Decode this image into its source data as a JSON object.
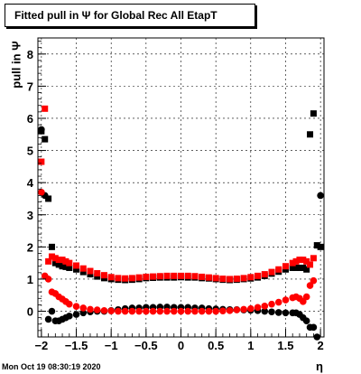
{
  "title_text": "Fitted pull in  Ψ  for Global Rec All EtapT",
  "datestamp": "Mon Oct 19 08:30:19 2020",
  "colors": {
    "black": "#000000",
    "red": "#ff0000"
  },
  "chart_data": {
    "type": "scatter",
    "title": "Fitted pull in  Ψ  for Global Rec All EtapT",
    "xlabel": "η",
    "ylabel": "pull in  Ψ",
    "xlim": [
      -2.05,
      2.05
    ],
    "ylim": [
      -0.8,
      8.5
    ],
    "xticks": [
      -2,
      -1.5,
      -1,
      -0.5,
      0,
      0.5,
      1,
      1.5,
      2
    ],
    "xtick_labels": [
      "−2",
      "−1.5",
      "−1",
      "−0.5",
      "0",
      "0.5",
      "1",
      "1.5",
      "2"
    ],
    "yticks": [
      0,
      1,
      2,
      3,
      4,
      5,
      6,
      7,
      8
    ],
    "ytick_labels": [
      "0",
      "1",
      "2",
      "3",
      "4",
      "5",
      "6",
      "7",
      "8"
    ],
    "grid": true,
    "series": [
      {
        "color": "#000000",
        "marker": "square",
        "x": [
          -2.0,
          -1.95,
          -1.9,
          -1.85,
          -1.8,
          -1.75,
          -1.7,
          -1.65,
          -1.6,
          -1.5,
          -1.4,
          -1.3,
          -1.2,
          -1.1,
          -1.0,
          -0.9,
          -0.8,
          -0.7,
          -0.6,
          -0.5,
          -0.4,
          -0.3,
          -0.2,
          -0.1,
          0.0,
          0.1,
          0.2,
          0.3,
          0.4,
          0.5,
          0.6,
          0.7,
          0.8,
          0.9,
          1.0,
          1.1,
          1.2,
          1.3,
          1.4,
          1.5,
          1.6,
          1.65,
          1.7,
          1.75,
          1.8,
          1.85,
          1.9,
          1.95,
          2.0
        ],
        "y": [
          5.6,
          5.35,
          3.5,
          2.0,
          1.5,
          1.45,
          1.4,
          1.38,
          1.35,
          1.3,
          1.22,
          1.15,
          1.08,
          1.03,
          1.0,
          0.98,
          0.97,
          0.98,
          1.0,
          1.03,
          1.04,
          1.05,
          1.05,
          1.05,
          1.06,
          1.05,
          1.05,
          1.03,
          1.02,
          1.0,
          0.98,
          0.97,
          0.98,
          1.0,
          1.02,
          1.05,
          1.1,
          1.17,
          1.23,
          1.3,
          1.35,
          1.35,
          1.35,
          1.35,
          1.3,
          5.5,
          6.15,
          2.05,
          2.0
        ]
      },
      {
        "color": "#ff0000",
        "marker": "square",
        "x": [
          -2.0,
          -1.95,
          -1.9,
          -1.85,
          -1.8,
          -1.75,
          -1.7,
          -1.65,
          -1.6,
          -1.5,
          -1.4,
          -1.3,
          -1.2,
          -1.1,
          -1.0,
          -0.9,
          -0.8,
          -0.7,
          -0.6,
          -0.5,
          -0.4,
          -0.3,
          -0.2,
          -0.1,
          0.0,
          0.1,
          0.2,
          0.3,
          0.4,
          0.5,
          0.6,
          0.7,
          0.8,
          0.9,
          1.0,
          1.1,
          1.2,
          1.3,
          1.4,
          1.5,
          1.6,
          1.65,
          1.7,
          1.75,
          1.8,
          1.85,
          1.9
        ],
        "y": [
          4.65,
          6.3,
          1.55,
          1.7,
          1.65,
          1.6,
          1.6,
          1.55,
          1.5,
          1.42,
          1.33,
          1.25,
          1.18,
          1.12,
          1.06,
          1.03,
          1.02,
          1.03,
          1.05,
          1.07,
          1.08,
          1.09,
          1.1,
          1.1,
          1.1,
          1.1,
          1.09,
          1.07,
          1.05,
          1.03,
          1.01,
          1.0,
          1.01,
          1.03,
          1.06,
          1.1,
          1.15,
          1.22,
          1.3,
          1.4,
          1.5,
          1.55,
          1.6,
          1.6,
          1.55,
          1.45,
          1.65
        ]
      },
      {
        "color": "#000000",
        "marker": "circle",
        "x": [
          -2.0,
          -1.95,
          -1.9,
          -1.85,
          -1.8,
          -1.75,
          -1.7,
          -1.65,
          -1.6,
          -1.5,
          -1.4,
          -1.3,
          -1.2,
          -1.1,
          -1.0,
          -0.9,
          -0.8,
          -0.7,
          -0.6,
          -0.5,
          -0.4,
          -0.3,
          -0.2,
          -0.1,
          0.0,
          0.1,
          0.2,
          0.3,
          0.4,
          0.5,
          0.6,
          0.7,
          0.8,
          0.9,
          1.0,
          1.1,
          1.2,
          1.3,
          1.4,
          1.5,
          1.6,
          1.65,
          1.7,
          1.75,
          1.8,
          1.85,
          1.9,
          1.95,
          2.0
        ],
        "y": [
          5.65,
          3.6,
          -0.25,
          0.0,
          -0.3,
          -0.3,
          -0.25,
          -0.2,
          -0.15,
          -0.1,
          -0.05,
          -0.02,
          0.0,
          0.0,
          0.02,
          0.05,
          0.08,
          0.1,
          0.1,
          0.12,
          0.12,
          0.13,
          0.13,
          0.12,
          0.12,
          0.12,
          0.1,
          0.1,
          0.08,
          0.07,
          0.06,
          0.05,
          0.05,
          0.04,
          0.03,
          0.02,
          0.0,
          -0.02,
          -0.04,
          -0.05,
          -0.05,
          -0.05,
          -0.1,
          -0.2,
          -0.3,
          -0.5,
          -0.5,
          -0.8,
          3.6
        ]
      },
      {
        "color": "#ff0000",
        "marker": "circle",
        "x": [
          -2.0,
          -1.95,
          -1.9,
          -1.85,
          -1.8,
          -1.75,
          -1.7,
          -1.65,
          -1.6,
          -1.5,
          -1.4,
          -1.3,
          -1.2,
          -1.1,
          -1.0,
          -0.9,
          -0.8,
          -0.7,
          -0.6,
          -0.5,
          -0.4,
          -0.3,
          -0.2,
          -0.1,
          0.0,
          0.1,
          0.2,
          0.3,
          0.4,
          0.5,
          0.6,
          0.7,
          0.8,
          0.9,
          1.0,
          1.1,
          1.2,
          1.3,
          1.4,
          1.5,
          1.6,
          1.65,
          1.7,
          1.75,
          1.8,
          1.85,
          1.9
        ],
        "y": [
          3.7,
          1.1,
          1.0,
          0.6,
          0.55,
          0.45,
          0.38,
          0.3,
          0.22,
          0.15,
          0.1,
          0.06,
          0.04,
          0.02,
          0.01,
          0.0,
          0.0,
          0.0,
          0.0,
          0.0,
          0.0,
          0.0,
          0.0,
          0.0,
          0.0,
          0.0,
          0.0,
          0.0,
          0.0,
          0.0,
          0.01,
          0.02,
          0.04,
          0.06,
          0.08,
          0.12,
          0.16,
          0.22,
          0.28,
          0.35,
          0.42,
          0.45,
          0.4,
          0.3,
          0.45,
          0.8,
          0.95
        ]
      }
    ]
  }
}
